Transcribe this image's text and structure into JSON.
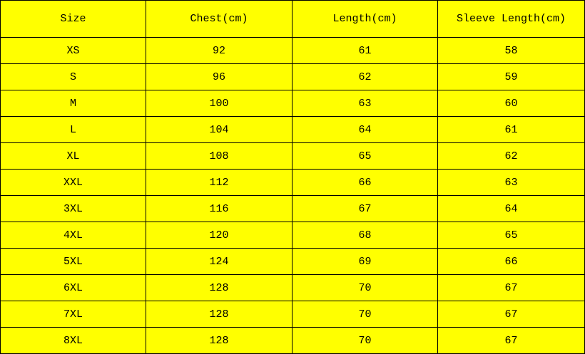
{
  "table": {
    "header": [
      "Size",
      "Chest(cm)",
      "Length(cm)",
      "Sleeve Length(cm)"
    ],
    "rows": [
      [
        "XS",
        92,
        61,
        58
      ],
      [
        "S",
        96,
        62,
        59
      ],
      [
        "M",
        100,
        63,
        60
      ],
      [
        "L",
        104,
        64,
        61
      ],
      [
        "XL",
        108,
        65,
        62
      ],
      [
        "XXL",
        112,
        66,
        63
      ],
      [
        "3XL",
        116,
        67,
        64
      ],
      [
        "4XL",
        120,
        68,
        65
      ],
      [
        "5XL",
        124,
        69,
        66
      ],
      [
        "6XL",
        128,
        70,
        67
      ],
      [
        "7XL",
        128,
        70,
        67
      ],
      [
        "8XL",
        128,
        70,
        67
      ]
    ]
  }
}
